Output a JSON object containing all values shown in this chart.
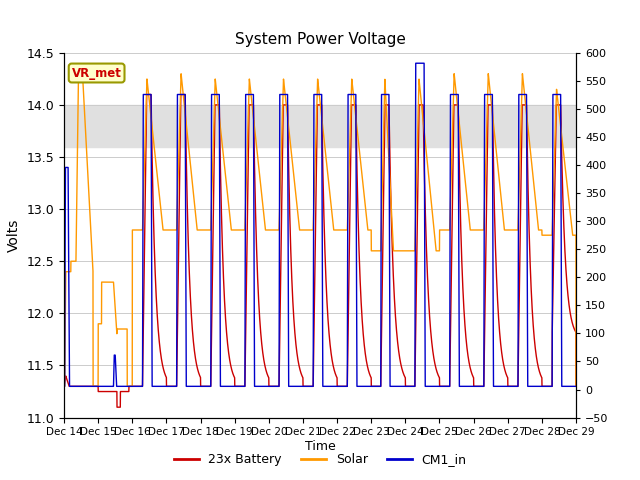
{
  "title": "System Power Voltage",
  "xlabel": "Time",
  "ylabel_left": "Volts",
  "ylim_left": [
    11.0,
    14.5
  ],
  "ylim_right": [
    -50,
    600
  ],
  "yticks_left": [
    11.0,
    11.5,
    12.0,
    12.5,
    13.0,
    13.5,
    14.0,
    14.5
  ],
  "yticks_right": [
    -50,
    0,
    50,
    100,
    150,
    200,
    250,
    300,
    350,
    400,
    450,
    500,
    550,
    600
  ],
  "xtick_labels": [
    "Dec 14",
    "Dec 15",
    "Dec 16",
    "Dec 17",
    "Dec 18",
    "Dec 19",
    "Dec 20",
    "Dec 21",
    "Dec 22",
    "Dec 23",
    "Dec 24",
    "Dec 25",
    "Dec 26",
    "Dec 27",
    "Dec 28",
    "Dec 29"
  ],
  "shaded_region": [
    13.6,
    14.0
  ],
  "legend_labels": [
    "23x Battery",
    "Solar",
    "CM1_in"
  ],
  "legend_colors": [
    "#cc0000",
    "#ff9900",
    "#0000cc"
  ],
  "vr_met_label": "VR_met",
  "background_color": "#ffffff",
  "grid_color": "#cccccc",
  "shaded_color": "#e0e0e0",
  "n_days": 15,
  "n_points": 14400
}
